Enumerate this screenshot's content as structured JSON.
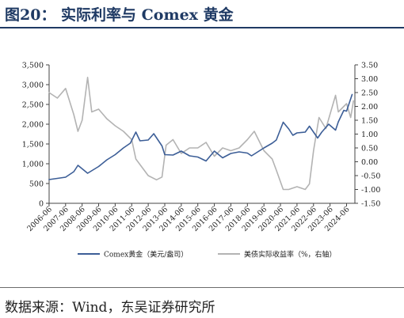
{
  "figure": {
    "title": "图20：  实际利率与 Comex 黄金",
    "source": "数据来源：Wind，东吴证券研究所"
  },
  "colors": {
    "gold_series": "#3c5e97",
    "rate_series": "#b3b3b3",
    "title": "#1f3a64"
  },
  "chart_data": {
    "type": "line",
    "x_ticks": [
      "2006-06",
      "2007-06",
      "2008-06",
      "2009-06",
      "2010-06",
      "2011-06",
      "2012-06",
      "2013-06",
      "2014-06",
      "2015-06",
      "2016-06",
      "2017-06",
      "2018-06",
      "2019-06",
      "2020-06",
      "2021-06",
      "2022-06",
      "2023-06",
      "2024-06"
    ],
    "left_axis": {
      "ylim": [
        0,
        3500
      ],
      "ticks": [
        "0",
        "500",
        "1,000",
        "1,500",
        "2,000",
        "2,500",
        "3,000",
        "3,500"
      ]
    },
    "right_axis": {
      "ylim": [
        -1.5,
        3.5
      ],
      "ticks": [
        "-1.50",
        "-1.00",
        "-0.50",
        "0.00",
        "0.50",
        "1.00",
        "1.50",
        "2.00",
        "2.50",
        "3.00",
        "3.50"
      ]
    },
    "legend_position": "bottom",
    "series": [
      {
        "name": "Comex黄金（美元/盎司）",
        "axis": "left",
        "points": [
          [
            "2006-06",
            600
          ],
          [
            "2006-12",
            630
          ],
          [
            "2007-06",
            660
          ],
          [
            "2007-12",
            800
          ],
          [
            "2008-03",
            960
          ],
          [
            "2008-10",
            760
          ],
          [
            "2009-06",
            930
          ],
          [
            "2009-12",
            1100
          ],
          [
            "2010-06",
            1230
          ],
          [
            "2010-12",
            1400
          ],
          [
            "2011-05",
            1520
          ],
          [
            "2011-09",
            1800
          ],
          [
            "2011-12",
            1580
          ],
          [
            "2012-06",
            1600
          ],
          [
            "2012-10",
            1760
          ],
          [
            "2013-04",
            1450
          ],
          [
            "2013-06",
            1230
          ],
          [
            "2013-12",
            1220
          ],
          [
            "2014-06",
            1320
          ],
          [
            "2014-12",
            1200
          ],
          [
            "2015-06",
            1170
          ],
          [
            "2015-12",
            1070
          ],
          [
            "2016-06",
            1320
          ],
          [
            "2016-12",
            1150
          ],
          [
            "2017-06",
            1260
          ],
          [
            "2017-12",
            1300
          ],
          [
            "2018-06",
            1270
          ],
          [
            "2018-09",
            1200
          ],
          [
            "2019-06",
            1400
          ],
          [
            "2019-12",
            1520
          ],
          [
            "2020-03",
            1600
          ],
          [
            "2020-08",
            2050
          ],
          [
            "2020-12",
            1880
          ],
          [
            "2021-03",
            1720
          ],
          [
            "2021-06",
            1780
          ],
          [
            "2021-12",
            1800
          ],
          [
            "2022-03",
            1950
          ],
          [
            "2022-09",
            1650
          ],
          [
            "2022-12",
            1800
          ],
          [
            "2023-05",
            2000
          ],
          [
            "2023-10",
            1850
          ],
          [
            "2023-12",
            2060
          ],
          [
            "2024-04",
            2350
          ],
          [
            "2024-06",
            2330
          ],
          [
            "2024-10",
            2750
          ]
        ]
      },
      {
        "name": "美债实际收益率（%，右轴）",
        "axis": "right",
        "points": [
          [
            "2006-06",
            2.5
          ],
          [
            "2006-12",
            2.3
          ],
          [
            "2007-06",
            2.65
          ],
          [
            "2007-12",
            1.7
          ],
          [
            "2008-03",
            1.1
          ],
          [
            "2008-06",
            1.5
          ],
          [
            "2008-10",
            3.05
          ],
          [
            "2009-01",
            1.8
          ],
          [
            "2009-06",
            1.9
          ],
          [
            "2009-12",
            1.55
          ],
          [
            "2010-06",
            1.3
          ],
          [
            "2010-12",
            1.1
          ],
          [
            "2011-06",
            0.8
          ],
          [
            "2011-09",
            0.1
          ],
          [
            "2011-12",
            -0.1
          ],
          [
            "2012-06",
            -0.5
          ],
          [
            "2012-12",
            -0.65
          ],
          [
            "2013-04",
            -0.55
          ],
          [
            "2013-07",
            0.6
          ],
          [
            "2013-12",
            0.8
          ],
          [
            "2014-06",
            0.3
          ],
          [
            "2014-12",
            0.5
          ],
          [
            "2015-06",
            0.5
          ],
          [
            "2015-12",
            0.7
          ],
          [
            "2016-06",
            0.2
          ],
          [
            "2016-12",
            0.5
          ],
          [
            "2017-06",
            0.4
          ],
          [
            "2017-12",
            0.5
          ],
          [
            "2018-06",
            0.8
          ],
          [
            "2018-11",
            1.1
          ],
          [
            "2019-06",
            0.4
          ],
          [
            "2019-12",
            0.1
          ],
          [
            "2020-03",
            -0.3
          ],
          [
            "2020-08",
            -1.0
          ],
          [
            "2020-12",
            -1.0
          ],
          [
            "2021-06",
            -0.9
          ],
          [
            "2021-12",
            -1.0
          ],
          [
            "2022-03",
            -0.8
          ],
          [
            "2022-06",
            0.4
          ],
          [
            "2022-10",
            1.6
          ],
          [
            "2023-03",
            1.2
          ],
          [
            "2023-10",
            2.4
          ],
          [
            "2023-12",
            1.8
          ],
          [
            "2024-06",
            2.1
          ],
          [
            "2024-09",
            1.6
          ],
          [
            "2024-11",
            2.2
          ]
        ]
      }
    ]
  }
}
